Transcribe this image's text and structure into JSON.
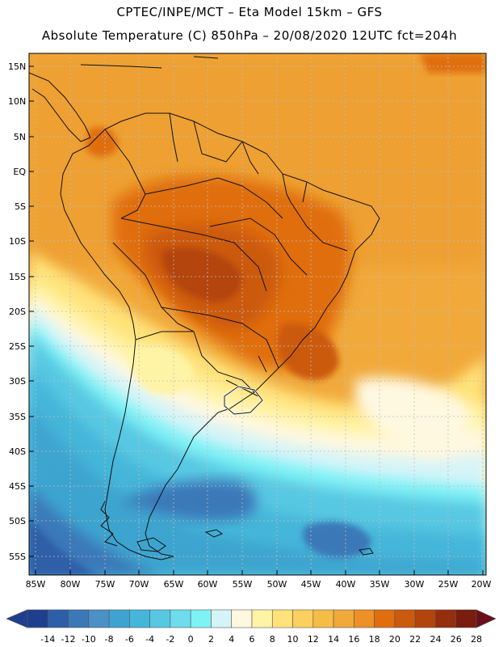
{
  "header": {
    "line1": "CPTEC/INPE/MCT –  Eta Model 15km – GFS",
    "line2": "Absolute Temperature (C) 850hPa – 20/08/2020 12UTC fct=204h"
  },
  "axes": {
    "lat_labels": [
      "15N",
      "10N",
      "5N",
      "EQ",
      "5S",
      "10S",
      "15S",
      "20S",
      "25S",
      "30S",
      "35S",
      "40S",
      "45S",
      "50S",
      "55S"
    ],
    "lon_labels": [
      "85W",
      "80W",
      "75W",
      "70W",
      "65W",
      "60W",
      "55W",
      "50W",
      "45W",
      "40W",
      "35W",
      "30W",
      "25W",
      "20W"
    ]
  },
  "legend": {
    "labels": [
      "-14",
      "-12",
      "-10",
      "-8",
      "-6",
      "-4",
      "-2",
      "0",
      "2",
      "4",
      "6",
      "8",
      "10",
      "12",
      "14",
      "16",
      "18",
      "20",
      "22",
      "24",
      "26",
      "28"
    ],
    "colors": [
      "#1d3f8e",
      "#2d5ea8",
      "#3a78b8",
      "#4b90c6",
      "#3ea4cf",
      "#44b6d9",
      "#58c8e2",
      "#6ddcec",
      "#7ff2f6",
      "#d5f4f8",
      "#fff8e0",
      "#fff3a6",
      "#ffe27a",
      "#fbd05e",
      "#f5bd45",
      "#f1a93a",
      "#ee9026",
      "#e06e0f",
      "#cc5a0c",
      "#b3440b",
      "#952e0c",
      "#7a1c0e"
    ]
  }
}
